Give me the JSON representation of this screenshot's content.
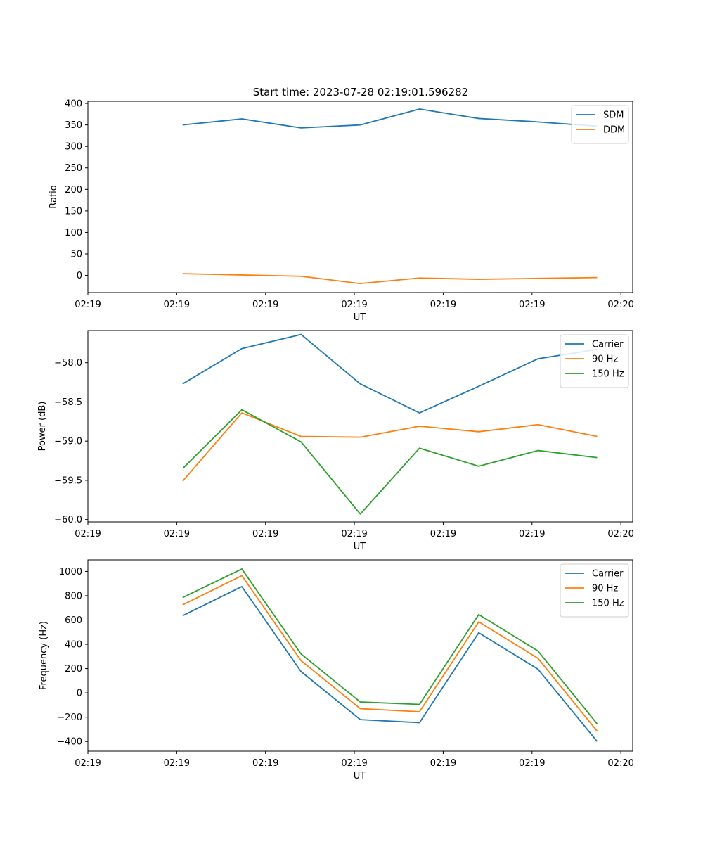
{
  "title": "Start time: 2023-07-28 02:19:01.596282",
  "colors": {
    "blue": "#1f77b4",
    "orange": "#ff7f0e",
    "green": "#2ca02c"
  },
  "chart_data": [
    {
      "type": "line",
      "x_time_s": [
        1.6,
        2.6,
        3.6,
        4.6,
        5.6,
        6.6,
        7.6,
        8.6
      ],
      "xlim": [
        0,
        9.2
      ],
      "x_tick_values": [
        0,
        1.5,
        3,
        4.5,
        6,
        7.5,
        9
      ],
      "x_tick_labels": [
        "02:19",
        "02:19",
        "02:19",
        "02:19",
        "02:19",
        "02:19",
        "02:20"
      ],
      "xlabel": "UT",
      "ylabel": "Ratio",
      "ylim": [
        -40,
        405
      ],
      "y_ticks": [
        0,
        50,
        100,
        150,
        200,
        250,
        300,
        350,
        400
      ],
      "y_tick_labels": [
        "0",
        "50",
        "100",
        "150",
        "200",
        "250",
        "300",
        "350",
        "400"
      ],
      "legend_position": "top-right",
      "series": [
        {
          "name": "SDM",
          "color": "#1f77b4",
          "values": [
            350,
            364,
            343,
            350,
            387,
            365,
            357,
            347
          ]
        },
        {
          "name": "DDM",
          "color": "#ff7f0e",
          "values": [
            4,
            1,
            -2,
            -19,
            -6,
            -9,
            -7,
            -5
          ]
        }
      ]
    },
    {
      "type": "line",
      "x_time_s": [
        1.6,
        2.6,
        3.6,
        4.6,
        5.6,
        6.6,
        7.6,
        8.6
      ],
      "xlim": [
        0,
        9.2
      ],
      "x_tick_values": [
        0,
        1.5,
        3,
        4.5,
        6,
        7.5,
        9
      ],
      "x_tick_labels": [
        "02:19",
        "02:19",
        "02:19",
        "02:19",
        "02:19",
        "02:19",
        "02:20"
      ],
      "xlabel": "UT",
      "ylabel": "Power (dB)",
      "ylim": [
        -60.03,
        -57.59
      ],
      "y_ticks": [
        -60.0,
        -59.5,
        -59.0,
        -58.5,
        -58.0
      ],
      "y_tick_labels": [
        "−60.0",
        "−59.5",
        "−59.0",
        "−58.5",
        "−58.0"
      ],
      "legend_position": "top-right",
      "series": [
        {
          "name": "Carrier",
          "color": "#1f77b4",
          "values": [
            -58.27,
            -57.82,
            -57.64,
            -58.27,
            -58.64,
            -58.3,
            -57.95,
            -57.83
          ]
        },
        {
          "name": "90 Hz",
          "color": "#ff7f0e",
          "values": [
            -59.51,
            -58.64,
            -58.94,
            -58.95,
            -58.81,
            -58.88,
            -58.79,
            -58.94
          ]
        },
        {
          "name": "150 Hz",
          "color": "#2ca02c",
          "values": [
            -59.35,
            -58.6,
            -59.01,
            -59.93,
            -59.09,
            -59.32,
            -59.12,
            -59.21
          ]
        }
      ]
    },
    {
      "type": "line",
      "x_time_s": [
        1.6,
        2.6,
        3.6,
        4.6,
        5.6,
        6.6,
        7.6,
        8.6
      ],
      "xlim": [
        0,
        9.2
      ],
      "x_tick_values": [
        0,
        1.5,
        3,
        4.5,
        6,
        7.5,
        9
      ],
      "x_tick_labels": [
        "02:19",
        "02:19",
        "02:19",
        "02:19",
        "02:19",
        "02:19",
        "02:20"
      ],
      "xlabel": "UT",
      "ylabel": "Frequency (Hz)",
      "ylim": [
        -480,
        1095
      ],
      "y_ticks": [
        -400,
        -200,
        0,
        200,
        400,
        600,
        800,
        1000
      ],
      "y_tick_labels": [
        "−400",
        "−200",
        "0",
        "200",
        "400",
        "600",
        "800",
        "1000"
      ],
      "legend_position": "top-right",
      "series": [
        {
          "name": "Carrier",
          "color": "#1f77b4",
          "values": [
            635,
            875,
            175,
            -220,
            -245,
            495,
            195,
            -400
          ]
        },
        {
          "name": "90 Hz",
          "color": "#ff7f0e",
          "values": [
            725,
            965,
            265,
            -130,
            -155,
            585,
            285,
            -315
          ]
        },
        {
          "name": "150 Hz",
          "color": "#2ca02c",
          "values": [
            785,
            1020,
            320,
            -75,
            -95,
            645,
            345,
            -255
          ]
        }
      ]
    }
  ]
}
